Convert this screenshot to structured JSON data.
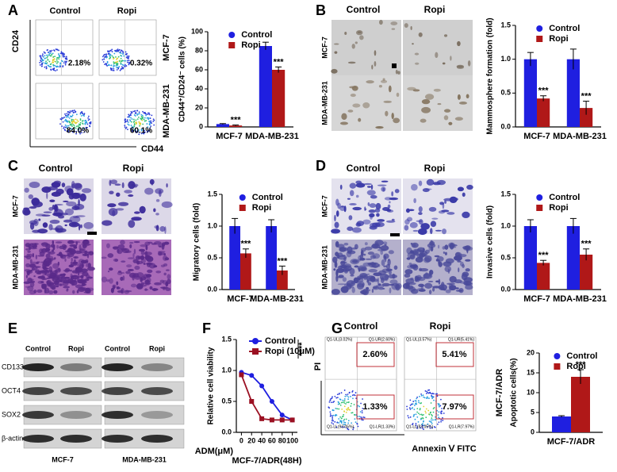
{
  "figure": {
    "A": {
      "letter": "A",
      "columns": [
        "Control",
        "Ropi"
      ],
      "rows": [
        "MCF-7",
        "MDA-MB-231"
      ],
      "y_axis": "CD24",
      "x_axis": "CD44",
      "percentages": [
        "2.18%",
        "0.32%",
        "84.0%",
        "60.1%"
      ]
    },
    "B": {
      "letter": "B",
      "columns": [
        "Control",
        "Ropi"
      ],
      "rows": [
        "MCF-7",
        "MDA-MB-231"
      ]
    },
    "C": {
      "letter": "C",
      "columns": [
        "Control",
        "Ropi"
      ],
      "rows": [
        "MCF-7",
        "MDA-MB-231"
      ]
    },
    "D": {
      "letter": "D",
      "columns": [
        "Control",
        "Ropi"
      ],
      "rows": [
        "MCF-7",
        "MDA-MB-231"
      ]
    },
    "E": {
      "letter": "E",
      "columns": [
        "Control",
        "Ropi",
        "Control",
        "Ropi"
      ],
      "rows": [
        "CD133",
        "OCT4",
        "SOX2",
        "β-actin"
      ],
      "cell_lines": [
        "MCF-7",
        "MDA-MB-231"
      ]
    },
    "F": {
      "letter": "F"
    },
    "G": {
      "letter": "G",
      "columns": [
        "Control",
        "Ropi"
      ],
      "y_axis": "PI",
      "x_axis": "Annexin Ⅴ FITC",
      "percentages": [
        [
          "2.60%",
          "1.33%"
        ],
        [
          "5.41%",
          "7.97%"
        ]
      ],
      "quadrants": [
        [
          "Q1-UL(3.02%)",
          "Q1-UR(2.60%)",
          "Q1-LL(93.05%)",
          "Q1-LR(1.33%)"
        ],
        [
          "Q1-UL(3.57%)",
          "Q1-UR(5.41%)",
          "Q1-LL(83.05%)",
          "Q1-LR(7.97%)"
        ]
      ]
    }
  },
  "chart_data": [
    {
      "type": "bar",
      "y_label": "CD44⁺/CD24⁻ cells (%)",
      "categories": [
        "MCF-7",
        "MDA-MB-231"
      ],
      "series": [
        {
          "name": "Control",
          "color": "#1f1fe0",
          "marker": "circle",
          "values": [
            3,
            85
          ],
          "errors": [
            0.5,
            4
          ]
        },
        {
          "name": "Ropi",
          "color": "#b01818",
          "marker": "square",
          "values": [
            1.5,
            60
          ],
          "errors": [
            0.5,
            3
          ]
        }
      ],
      "significance": [
        "***",
        "***"
      ],
      "ylim": [
        0,
        100
      ],
      "yticks": [
        0,
        20,
        40,
        60,
        80,
        100
      ]
    },
    {
      "type": "bar",
      "y_label": "Mammosphere formation (fold)",
      "categories": [
        "MCF-7",
        "MDA-MB-231"
      ],
      "series": [
        {
          "name": "Control",
          "color": "#1f1fe0",
          "marker": "circle",
          "values": [
            1.0,
            1.0
          ],
          "errors": [
            0.1,
            0.15
          ]
        },
        {
          "name": "Ropi",
          "color": "#b01818",
          "marker": "square",
          "values": [
            0.42,
            0.28
          ],
          "errors": [
            0.04,
            0.1
          ]
        }
      ],
      "significance": [
        "***",
        "***"
      ],
      "ylim": [
        0,
        1.5
      ],
      "yticks": [
        {
          "value": 0,
          "label": "0.0"
        },
        0.5,
        {
          "value": 1,
          "label": "1.0"
        },
        1.5
      ]
    },
    {
      "type": "bar",
      "y_label": "Migratory cells (fold)",
      "categories": [
        "MCF-7",
        "MDA-MB-231"
      ],
      "series": [
        {
          "name": "Control",
          "color": "#1f1fe0",
          "marker": "circle",
          "values": [
            1.0,
            1.0
          ],
          "errors": [
            0.12,
            0.1
          ]
        },
        {
          "name": "Ropi",
          "color": "#b01818",
          "marker": "square",
          "values": [
            0.57,
            0.3
          ],
          "errors": [
            0.07,
            0.07
          ]
        }
      ],
      "significance": [
        "***",
        "***"
      ],
      "ylim": [
        0,
        1.5
      ],
      "yticks": [
        {
          "value": 0,
          "label": "0.0"
        },
        0.5,
        {
          "value": 1,
          "label": "1.0"
        },
        1.5
      ]
    },
    {
      "type": "bar",
      "y_label": "Invasive cells (fold)",
      "categories": [
        "MCF-7",
        "MDA-MB-231"
      ],
      "series": [
        {
          "name": "Control",
          "color": "#1f1fe0",
          "marker": "circle",
          "values": [
            1.0,
            1.0
          ],
          "errors": [
            0.1,
            0.12
          ]
        },
        {
          "name": "Ropi",
          "color": "#b01818",
          "marker": "square",
          "values": [
            0.42,
            0.55
          ],
          "errors": [
            0.04,
            0.09
          ]
        }
      ],
      "significance": [
        "***",
        "***"
      ],
      "ylim": [
        0,
        1.5
      ],
      "yticks": [
        {
          "value": 0,
          "label": "0.0"
        },
        0.5,
        {
          "value": 1,
          "label": "1.0"
        },
        1.5
      ]
    },
    {
      "type": "line",
      "y_label": "Relative cell viability",
      "x_label": "ADM(μM)",
      "subtitle": "MCF-7/ADR(48H)",
      "x": [
        0,
        20,
        40,
        60,
        80,
        100
      ],
      "series": [
        {
          "name": "Control",
          "color": "#1f1fe0",
          "marker": "circle",
          "values": [
            0.97,
            0.92,
            0.75,
            0.5,
            0.28,
            0.2
          ]
        },
        {
          "name": "Ropi (10μM)",
          "color": "#9b1022",
          "marker": "square",
          "values": [
            0.93,
            0.5,
            0.22,
            0.2,
            0.2,
            0.2
          ]
        }
      ],
      "significance": "****",
      "xlim": [
        -10,
        110
      ],
      "xticks": [
        0,
        20,
        40,
        60,
        80,
        100
      ],
      "ylim": [
        0,
        1.5
      ],
      "yticks": [
        {
          "value": 0,
          "label": "0.0"
        },
        0.5,
        {
          "value": 1,
          "label": "1.0"
        },
        1.5
      ]
    },
    {
      "type": "bar",
      "y_label": "Apoptotic cells(%)",
      "side_label": "MCF-7/ADR",
      "categories": [
        "MCF-7/ADR"
      ],
      "series": [
        {
          "name": "Control",
          "color": "#1f1fe0",
          "marker": "circle",
          "values": [
            4
          ],
          "errors": [
            0.2
          ]
        },
        {
          "name": "Ropi",
          "color": "#b01818",
          "marker": "square",
          "values": [
            14
          ],
          "errors": [
            1.8
          ]
        }
      ],
      "significance": [
        "***"
      ],
      "ylim": [
        0,
        20
      ],
      "yticks": [
        0,
        5,
        10,
        15,
        20
      ]
    }
  ]
}
